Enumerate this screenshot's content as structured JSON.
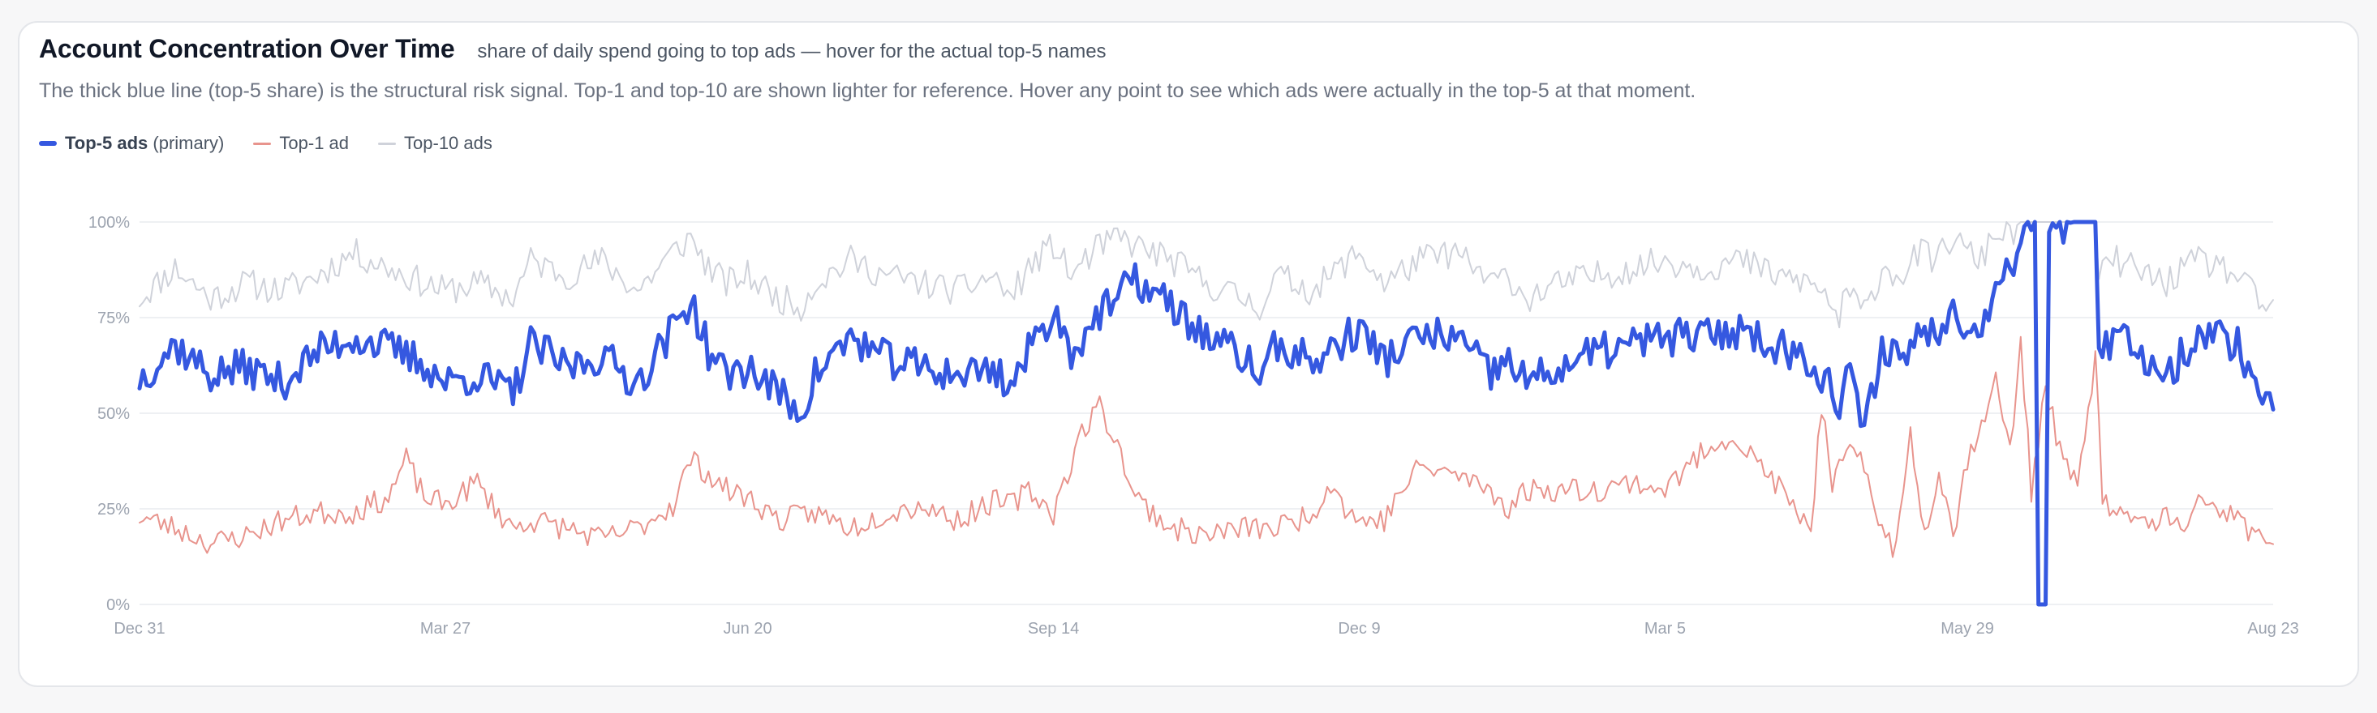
{
  "header": {
    "title": "Account Concentration Over Time",
    "subtitle": "share of daily spend going to top ads — hover for the actual top-5 names",
    "description": "The thick blue line (top-5 share) is the structural risk signal. Top-1 and top-10 are shown lighter for reference. Hover any point to see which ads were actually in the top-5 at that moment."
  },
  "legend": {
    "top5_name": "Top-5 ads",
    "top5_suffix": "(primary)",
    "top1_name": "Top-1 ad",
    "top10_name": "Top-10 ads"
  },
  "colors": {
    "top5": "#3558e0",
    "top1": "#e8948d",
    "top10": "#cfd2da",
    "grid": "#eef0f3"
  },
  "chart_data": {
    "type": "line",
    "y_ticks": [
      "0%",
      "25%",
      "50%",
      "75%",
      "100%"
    ],
    "ylim": [
      0,
      100
    ],
    "x_ticks": [
      "Dec 31",
      "Mar 27",
      "Jun 20",
      "Sep 14",
      "Dec 9",
      "Mar 5",
      "May 29",
      "Aug 23"
    ],
    "x_tick_days": [
      0,
      86,
      171,
      257,
      343,
      429,
      514,
      600
    ],
    "series": [
      {
        "key": "top5",
        "name": "Top-5 ads",
        "knots": [
          [
            0,
            59
          ],
          [
            10,
            68
          ],
          [
            20,
            60
          ],
          [
            30,
            62
          ],
          [
            40,
            58
          ],
          [
            50,
            66
          ],
          [
            60,
            70
          ],
          [
            70,
            67
          ],
          [
            80,
            63
          ],
          [
            86,
            58
          ],
          [
            95,
            60
          ],
          [
            105,
            55
          ],
          [
            110,
            68
          ],
          [
            120,
            62
          ],
          [
            130,
            65
          ],
          [
            140,
            58
          ],
          [
            150,
            72
          ],
          [
            155,
            80
          ],
          [
            160,
            66
          ],
          [
            165,
            60
          ],
          [
            171,
            62
          ],
          [
            180,
            55
          ],
          [
            186,
            50
          ],
          [
            190,
            60
          ],
          [
            200,
            70
          ],
          [
            210,
            64
          ],
          [
            220,
            62
          ],
          [
            230,
            60
          ],
          [
            240,
            62
          ],
          [
            245,
            57
          ],
          [
            250,
            66
          ],
          [
            257,
            77
          ],
          [
            262,
            66
          ],
          [
            268,
            74
          ],
          [
            275,
            80
          ],
          [
            280,
            85
          ],
          [
            290,
            78
          ],
          [
            300,
            70
          ],
          [
            310,
            65
          ],
          [
            315,
            60
          ],
          [
            320,
            68
          ],
          [
            330,
            63
          ],
          [
            340,
            70
          ],
          [
            343,
            72
          ],
          [
            350,
            64
          ],
          [
            360,
            70
          ],
          [
            370,
            70
          ],
          [
            380,
            60
          ],
          [
            385,
            64
          ],
          [
            390,
            58
          ],
          [
            395,
            60
          ],
          [
            400,
            62
          ],
          [
            410,
            66
          ],
          [
            420,
            68
          ],
          [
            429,
            70
          ],
          [
            440,
            70
          ],
          [
            450,
            72
          ],
          [
            460,
            68
          ],
          [
            470,
            64
          ],
          [
            475,
            58
          ],
          [
            478,
            50
          ],
          [
            480,
            62
          ],
          [
            485,
            45
          ],
          [
            490,
            68
          ],
          [
            496,
            64
          ],
          [
            500,
            72
          ],
          [
            505,
            70
          ],
          [
            510,
            80
          ],
          [
            514,
            72
          ],
          [
            518,
            70
          ],
          [
            522,
            88
          ],
          [
            526,
            86
          ],
          [
            529,
            98
          ],
          [
            532,
            100
          ],
          [
            533,
            100
          ],
          [
            534,
            0
          ],
          [
            536,
            0
          ],
          [
            537,
            100
          ],
          [
            540,
            99
          ],
          [
            545,
            100
          ],
          [
            550,
            100
          ],
          [
            551,
            64
          ],
          [
            556,
            70
          ],
          [
            560,
            68
          ],
          [
            570,
            60
          ],
          [
            575,
            66
          ],
          [
            580,
            72
          ],
          [
            590,
            68
          ],
          [
            595,
            58
          ],
          [
            597,
            54
          ],
          [
            600,
            55
          ]
        ],
        "noise_amplitude": 5
      },
      {
        "key": "top1",
        "name": "Top-1 ad",
        "knots": [
          [
            0,
            23
          ],
          [
            10,
            20
          ],
          [
            20,
            16
          ],
          [
            30,
            18
          ],
          [
            40,
            22
          ],
          [
            50,
            24
          ],
          [
            60,
            24
          ],
          [
            70,
            28
          ],
          [
            75,
            38
          ],
          [
            80,
            28
          ],
          [
            86,
            26
          ],
          [
            95,
            32
          ],
          [
            100,
            25
          ],
          [
            105,
            20
          ],
          [
            110,
            22
          ],
          [
            120,
            20
          ],
          [
            130,
            17
          ],
          [
            140,
            20
          ],
          [
            150,
            26
          ],
          [
            155,
            38
          ],
          [
            160,
            34
          ],
          [
            165,
            30
          ],
          [
            171,
            28
          ],
          [
            180,
            22
          ],
          [
            190,
            24
          ],
          [
            200,
            20
          ],
          [
            210,
            24
          ],
          [
            220,
            26
          ],
          [
            230,
            22
          ],
          [
            240,
            27
          ],
          [
            245,
            26
          ],
          [
            250,
            30
          ],
          [
            257,
            24
          ],
          [
            265,
            45
          ],
          [
            270,
            52
          ],
          [
            275,
            42
          ],
          [
            280,
            28
          ],
          [
            290,
            20
          ],
          [
            300,
            18
          ],
          [
            310,
            20
          ],
          [
            320,
            20
          ],
          [
            330,
            24
          ],
          [
            335,
            32
          ],
          [
            340,
            24
          ],
          [
            343,
            22
          ],
          [
            350,
            22
          ],
          [
            355,
            30
          ],
          [
            360,
            36
          ],
          [
            370,
            34
          ],
          [
            380,
            30
          ],
          [
            385,
            25
          ],
          [
            390,
            30
          ],
          [
            400,
            30
          ],
          [
            410,
            30
          ],
          [
            420,
            32
          ],
          [
            429,
            30
          ],
          [
            440,
            40
          ],
          [
            445,
            44
          ],
          [
            450,
            42
          ],
          [
            460,
            32
          ],
          [
            465,
            25
          ],
          [
            470,
            20
          ],
          [
            473,
            52
          ],
          [
            476,
            30
          ],
          [
            480,
            40
          ],
          [
            485,
            36
          ],
          [
            490,
            20
          ],
          [
            494,
            14
          ],
          [
            498,
            45
          ],
          [
            502,
            18
          ],
          [
            506,
            36
          ],
          [
            510,
            18
          ],
          [
            514,
            38
          ],
          [
            518,
            48
          ],
          [
            522,
            58
          ],
          [
            526,
            40
          ],
          [
            529,
            68
          ],
          [
            532,
            30
          ],
          [
            536,
            58
          ],
          [
            540,
            40
          ],
          [
            545,
            30
          ],
          [
            550,
            65
          ],
          [
            552,
            28
          ],
          [
            556,
            22
          ],
          [
            560,
            24
          ],
          [
            565,
            20
          ],
          [
            570,
            24
          ],
          [
            575,
            18
          ],
          [
            580,
            28
          ],
          [
            590,
            22
          ],
          [
            595,
            18
          ],
          [
            600,
            17
          ]
        ],
        "noise_amplitude": 3.2
      },
      {
        "key": "top10",
        "name": "Top-10 ads",
        "knots": [
          [
            0,
            80
          ],
          [
            10,
            88
          ],
          [
            20,
            80
          ],
          [
            30,
            84
          ],
          [
            40,
            82
          ],
          [
            50,
            86
          ],
          [
            60,
            92
          ],
          [
            70,
            88
          ],
          [
            80,
            84
          ],
          [
            86,
            82
          ],
          [
            95,
            84
          ],
          [
            105,
            80
          ],
          [
            110,
            90
          ],
          [
            120,
            86
          ],
          [
            130,
            90
          ],
          [
            140,
            82
          ],
          [
            150,
            92
          ],
          [
            155,
            96
          ],
          [
            160,
            88
          ],
          [
            165,
            84
          ],
          [
            171,
            86
          ],
          [
            180,
            80
          ],
          [
            186,
            78
          ],
          [
            190,
            84
          ],
          [
            200,
            90
          ],
          [
            210,
            86
          ],
          [
            220,
            84
          ],
          [
            230,
            82
          ],
          [
            240,
            86
          ],
          [
            245,
            80
          ],
          [
            250,
            88
          ],
          [
            257,
            94
          ],
          [
            262,
            86
          ],
          [
            268,
            92
          ],
          [
            275,
            96
          ],
          [
            280,
            94
          ],
          [
            290,
            90
          ],
          [
            300,
            84
          ],
          [
            310,
            80
          ],
          [
            315,
            78
          ],
          [
            320,
            86
          ],
          [
            330,
            82
          ],
          [
            340,
            90
          ],
          [
            343,
            92
          ],
          [
            350,
            84
          ],
          [
            360,
            90
          ],
          [
            370,
            92
          ],
          [
            380,
            84
          ],
          [
            385,
            86
          ],
          [
            390,
            80
          ],
          [
            395,
            82
          ],
          [
            400,
            84
          ],
          [
            410,
            86
          ],
          [
            420,
            88
          ],
          [
            429,
            90
          ],
          [
            440,
            88
          ],
          [
            450,
            90
          ],
          [
            460,
            86
          ],
          [
            470,
            84
          ],
          [
            475,
            80
          ],
          [
            478,
            74
          ],
          [
            480,
            82
          ],
          [
            485,
            76
          ],
          [
            490,
            88
          ],
          [
            496,
            86
          ],
          [
            500,
            92
          ],
          [
            505,
            90
          ],
          [
            510,
            96
          ],
          [
            514,
            92
          ],
          [
            518,
            90
          ],
          [
            522,
            98
          ],
          [
            526,
            96
          ],
          [
            529,
            100
          ],
          [
            532,
            100
          ],
          [
            533,
            100
          ],
          [
            534,
            100
          ],
          [
            536,
            100
          ],
          [
            537,
            100
          ],
          [
            540,
            100
          ],
          [
            545,
            100
          ],
          [
            550,
            100
          ],
          [
            551,
            86
          ],
          [
            556,
            90
          ],
          [
            560,
            88
          ],
          [
            570,
            84
          ],
          [
            575,
            88
          ],
          [
            580,
            90
          ],
          [
            590,
            86
          ],
          [
            595,
            80
          ],
          [
            597,
            78
          ],
          [
            600,
            78
          ]
        ],
        "noise_amplitude": 4
      }
    ]
  }
}
